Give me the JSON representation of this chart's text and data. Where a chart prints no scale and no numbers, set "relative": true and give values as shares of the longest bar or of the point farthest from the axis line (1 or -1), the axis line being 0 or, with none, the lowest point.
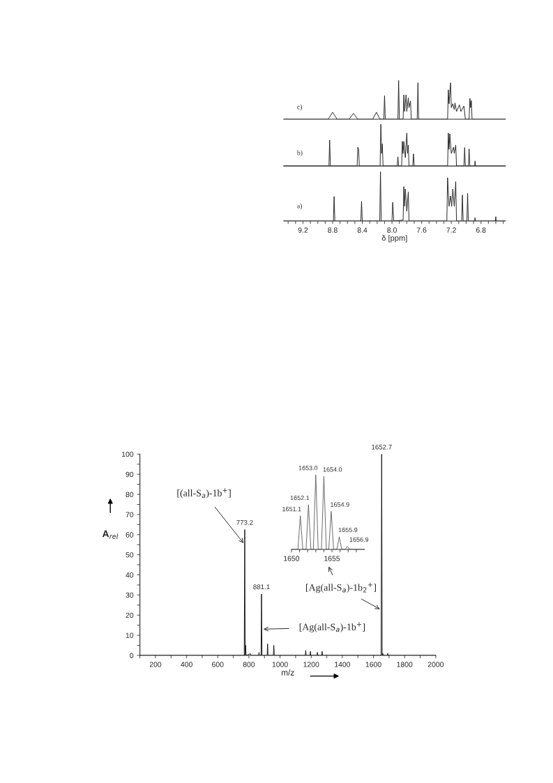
{
  "chart_data": [
    {
      "type": "line",
      "relative": true,
      "tick_labels": false,
      "xlim": [
        9.46,
        6.47
      ],
      "annotations": [
        "c)"
      ],
      "series": [
        {
          "color": "#222222",
          "x": [
            9.46,
            8.86,
            8.8,
            8.74,
            8.58,
            8.52,
            8.46,
            8.26,
            8.21,
            8.16,
            8.11,
            8.1,
            8.09,
            7.92,
            7.91,
            7.9,
            7.85,
            7.84,
            7.83,
            7.81,
            7.8,
            7.78,
            7.77,
            7.75,
            7.74,
            7.66,
            7.65,
            7.64,
            7.25,
            7.24,
            7.23,
            7.21,
            7.2,
            7.18,
            7.16,
            7.15,
            7.13,
            7.09,
            7.07,
            7.03,
            7.01,
            6.96,
            6.95,
            6.94,
            6.93,
            6.92,
            6.47
          ],
          "values": [
            0,
            0,
            0.18,
            0,
            0,
            0.15,
            0,
            0,
            0.18,
            0,
            0,
            0.61,
            0,
            0,
            1.0,
            0,
            0,
            0.63,
            0.2,
            0.63,
            0.2,
            0.55,
            0.3,
            0.47,
            0,
            0,
            0.94,
            0,
            0,
            0.76,
            0.4,
            0.94,
            0.3,
            0.4,
            0.25,
            0.42,
            0.2,
            0.37,
            0.2,
            0.34,
            0,
            0,
            0.54,
            0.3,
            0.48,
            0,
            0
          ]
        }
      ]
    },
    {
      "type": "line",
      "relative": true,
      "tick_labels": false,
      "xlim": [
        9.46,
        6.47
      ],
      "annotations": [
        "b)"
      ],
      "series": [
        {
          "color": "#222222",
          "x": [
            9.46,
            8.85,
            8.84,
            8.83,
            8.47,
            8.46,
            8.45,
            8.44,
            8.16,
            8.15,
            8.14,
            8.13,
            8.12,
            7.93,
            7.92,
            7.91,
            7.87,
            7.86,
            7.85,
            7.84,
            7.82,
            7.8,
            7.79,
            7.78,
            7.77,
            7.72,
            7.71,
            7.7,
            7.25,
            7.24,
            7.23,
            7.22,
            7.2,
            7.17,
            7.16,
            7.14,
            7.13,
            7.03,
            7.02,
            7.01,
            6.97,
            6.96,
            6.95,
            6.885,
            6.88,
            6.875,
            6.47
          ],
          "values": [
            0,
            0,
            0.62,
            0,
            0,
            0.45,
            0.4,
            0,
            0,
            1.0,
            0.3,
            0.53,
            0,
            0,
            0.22,
            0,
            0,
            0.59,
            0.3,
            0.59,
            0.2,
            0.79,
            0.3,
            0.5,
            0,
            0,
            0.29,
            0,
            0,
            0.79,
            0.4,
            0.77,
            0.3,
            0.45,
            0.3,
            0.5,
            0,
            0,
            0.44,
            0,
            0,
            0.41,
            0,
            0,
            0.12,
            0,
            0
          ]
        }
      ]
    },
    {
      "type": "line",
      "relative": true,
      "tick_labels": "x",
      "xlim": [
        9.46,
        6.47
      ],
      "xlabel": "δ [ppm]",
      "annotations": [
        "a)"
      ],
      "xticks": [
        {
          "value": 9.4,
          "label": null
        },
        {
          "value": 9.3,
          "label": null
        },
        {
          "value": 9.2,
          "label": "9.2"
        },
        {
          "value": 9.1,
          "label": null
        },
        {
          "value": 9.0,
          "label": null
        },
        {
          "value": 8.9,
          "label": null
        },
        {
          "value": 8.8,
          "label": "8.8"
        },
        {
          "value": 8.7,
          "label": null
        },
        {
          "value": 8.6,
          "label": null
        },
        {
          "value": 8.5,
          "label": null
        },
        {
          "value": 8.4,
          "label": "8.4"
        },
        {
          "value": 8.3,
          "label": null
        },
        {
          "value": 8.2,
          "label": null
        },
        {
          "value": 8.1,
          "label": null
        },
        {
          "value": 8.0,
          "label": "8.0"
        },
        {
          "value": 7.9,
          "label": null
        },
        {
          "value": 7.8,
          "label": null
        },
        {
          "value": 7.7,
          "label": null
        },
        {
          "value": 7.6,
          "label": "7.6"
        },
        {
          "value": 7.5,
          "label": null
        },
        {
          "value": 7.4,
          "label": null
        },
        {
          "value": 7.3,
          "label": null
        },
        {
          "value": 7.2,
          "label": "7.2"
        },
        {
          "value": 7.1,
          "label": null
        },
        {
          "value": 7.0,
          "label": null
        },
        {
          "value": 6.9,
          "label": null
        },
        {
          "value": 6.8,
          "label": "6.8"
        },
        {
          "value": 6.7,
          "label": null
        },
        {
          "value": 6.6,
          "label": null
        },
        {
          "value": 6.5,
          "label": null
        }
      ],
      "series": [
        {
          "color": "#222222",
          "x": [
            9.46,
            8.79,
            8.78,
            8.77,
            8.42,
            8.41,
            8.4,
            8.165,
            8.155,
            8.145,
            8.0,
            7.99,
            7.975,
            7.85,
            7.84,
            7.83,
            7.82,
            7.8,
            7.78,
            7.77,
            7.26,
            7.25,
            7.23,
            7.21,
            7.195,
            7.18,
            7.16,
            7.14,
            7.13,
            7.06,
            7.05,
            7.04,
            6.99,
            6.98,
            6.97,
            6.885,
            6.88,
            6.875,
            6.605,
            6.6,
            6.595,
            6.47
          ],
          "values": [
            0,
            0,
            0.5,
            0,
            0,
            0.4,
            0,
            0,
            1.0,
            0,
            0,
            0.38,
            0,
            0.02,
            0.7,
            0.3,
            0.65,
            0.2,
            0.59,
            0,
            0,
            0.88,
            0.3,
            0.51,
            0.3,
            0.65,
            0.3,
            0.8,
            0,
            0,
            0.53,
            0,
            0,
            0.56,
            0,
            0,
            0.07,
            0,
            0,
            0.09,
            0,
            0
          ]
        }
      ]
    },
    {
      "type": "line",
      "xlim": [
        100,
        2000
      ],
      "ylim": [
        0,
        100
      ],
      "xlabel": "m/z",
      "ylabel": "A$_{rel}$",
      "xticks": [
        {
          "value": 100,
          "label": null
        },
        200,
        {
          "value": 300,
          "label": null
        },
        400,
        {
          "value": 500,
          "label": null
        },
        600,
        {
          "value": 700,
          "label": null
        },
        800,
        {
          "value": 900,
          "label": null
        },
        1000,
        {
          "value": 1100,
          "label": null
        },
        1200,
        {
          "value": 1300,
          "label": null
        },
        1400,
        {
          "value": 1500,
          "label": null
        },
        1600,
        {
          "value": 1700,
          "label": null
        },
        1800,
        {
          "value": 1900,
          "label": null
        },
        2000
      ],
      "yticks": [
        0,
        {
          "value": 5,
          "label": null
        },
        10,
        {
          "value": 15,
          "label": null
        },
        20,
        {
          "value": 25,
          "label": null
        },
        30,
        {
          "value": 35,
          "label": null
        },
        40,
        {
          "value": 45,
          "label": null
        },
        50,
        {
          "value": 55,
          "label": null
        },
        60,
        {
          "value": 65,
          "label": null
        },
        70,
        {
          "value": 75,
          "label": null
        },
        80,
        {
          "value": 85,
          "label": null
        },
        90,
        {
          "value": 95,
          "label": null
        },
        100
      ],
      "annotations": [
        {
          "text": "[(all-S$_{a}$)-1b$^{+}$]",
          "x": 773.2,
          "y": 55
        },
        {
          "text": "[Ag(all-S$_{a}$)-1b$^{+}$]",
          "x": 881.1,
          "y": 13
        },
        {
          "text": "[Ag(all-S$_{a}$)-1b$_{2}$$^{+}$]",
          "x": 1652.7,
          "y": 22.5
        },
        {
          "text": "773.2",
          "x": 773.2,
          "y": 62.5
        },
        {
          "text": "881.1",
          "x": 881.1,
          "y": 30.5
        },
        {
          "text": "1652.7",
          "x": 1652.7,
          "y": 100
        }
      ],
      "series": [
        {
          "color": "#111111",
          "x": [
            100,
            760,
            770,
            773.2,
            776,
            779,
            782,
            810,
            815,
            862,
            865,
            868,
            878,
            881.1,
            884,
            917,
            920,
            923,
            957,
            960,
            963,
            1162,
            1165,
            1168,
            1192,
            1195,
            1198,
            1237,
            1240,
            1243,
            1267,
            1270,
            1273,
            1649,
            1652.7,
            1656,
            1660,
            1663,
            1690,
            1692,
            1694,
            2000
          ],
          "values": [
            0,
            0,
            0,
            62.5,
            0,
            5,
            0,
            0.8,
            0,
            0,
            1.5,
            0,
            0,
            30.5,
            0,
            0,
            5.7,
            0,
            0,
            5,
            0,
            0,
            2.5,
            0,
            0,
            2,
            0,
            0,
            1.5,
            0,
            0,
            2,
            0,
            0,
            100,
            0,
            1,
            0,
            0,
            1,
            0,
            0
          ]
        }
      ]
    },
    {
      "type": "line",
      "relative": true,
      "tick_labels": "x",
      "xlim": [
        1650,
        1659
      ],
      "xticks": [
        1650,
        {
          "value": 1651,
          "label": null
        },
        {
          "value": 1652,
          "label": null
        },
        {
          "value": 1653,
          "label": null
        },
        {
          "value": 1654,
          "label": null
        },
        1655,
        {
          "value": 1656,
          "label": null
        },
        {
          "value": 1657,
          "label": null
        },
        {
          "value": 1658,
          "label": null
        }
      ],
      "series": [
        {
          "color": "#666666",
          "x": [
            1650,
            1650.8,
            1651.1,
            1651.4,
            1651.8,
            1652.1,
            1652.4,
            1652.7,
            1653.0,
            1653.3,
            1653.7,
            1654.0,
            1654.3,
            1654.6,
            1654.9,
            1655.2,
            1655.6,
            1655.9,
            1656.2,
            1656.6,
            1656.9,
            1657.2,
            1659
          ],
          "values": [
            0,
            0,
            0.45,
            0,
            0,
            0.6,
            0,
            0,
            1.0,
            0,
            0,
            0.98,
            0,
            0,
            0.51,
            0,
            0,
            0.17,
            0,
            0,
            0.04,
            0,
            0
          ]
        }
      ],
      "annotations": [
        {
          "text": "1651.1",
          "x": 1651.1,
          "y": 0.45
        },
        {
          "text": "1652.1",
          "x": 1652.1,
          "y": 0.6
        },
        {
          "text": "1653.0",
          "x": 1653.0,
          "y": 1.0
        },
        {
          "text": "1654.0",
          "x": 1654.0,
          "y": 0.98
        },
        {
          "text": "1654.9",
          "x": 1654.9,
          "y": 0.51
        },
        {
          "text": "1655.9",
          "x": 1655.9,
          "y": 0.17
        },
        {
          "text": "1656.9",
          "x": 1656.9,
          "y": 0.04
        }
      ]
    }
  ]
}
